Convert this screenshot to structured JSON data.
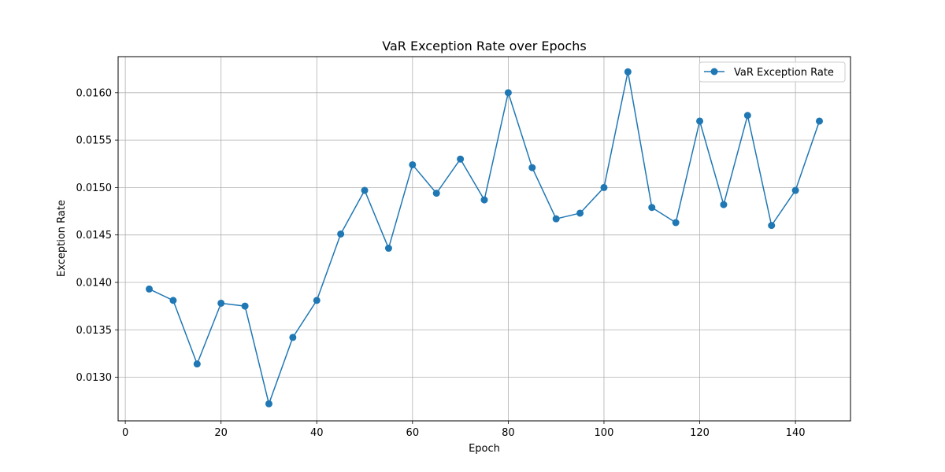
{
  "chart_data": {
    "type": "line",
    "title": "VaR Exception Rate over Epochs",
    "xlabel": "Epoch",
    "ylabel": "Exception Rate",
    "xlim": [
      -1.5,
      151.5
    ],
    "ylim": [
      0.01254,
      0.01638
    ],
    "xticks": [
      0,
      20,
      40,
      60,
      80,
      100,
      120,
      140
    ],
    "xtick_labels": [
      "0",
      "20",
      "40",
      "60",
      "80",
      "100",
      "120",
      "140"
    ],
    "yticks": [
      0.013,
      0.0135,
      0.014,
      0.0145,
      0.015,
      0.0155,
      0.016
    ],
    "ytick_labels": [
      "0.0130",
      "0.0135",
      "0.0140",
      "0.0145",
      "0.0150",
      "0.0155",
      "0.0160"
    ],
    "grid": true,
    "legend_position": "top-right",
    "series": [
      {
        "name": "VaR Exception Rate",
        "color": "#1f77b4",
        "marker": "circle",
        "x": [
          5,
          10,
          15,
          20,
          25,
          30,
          35,
          40,
          45,
          50,
          55,
          60,
          65,
          70,
          75,
          80,
          85,
          90,
          95,
          100,
          105,
          110,
          115,
          120,
          125,
          130,
          135,
          140,
          145
        ],
        "y": [
          0.01393,
          0.01381,
          0.01314,
          0.01378,
          0.01375,
          0.01272,
          0.01342,
          0.01381,
          0.01451,
          0.01497,
          0.01436,
          0.01524,
          0.01494,
          0.0153,
          0.01487,
          0.016,
          0.01521,
          0.01467,
          0.01473,
          0.015,
          0.01622,
          0.01479,
          0.01463,
          0.0157,
          0.01482,
          0.01576,
          0.0146,
          0.01497,
          0.0157
        ]
      }
    ]
  }
}
